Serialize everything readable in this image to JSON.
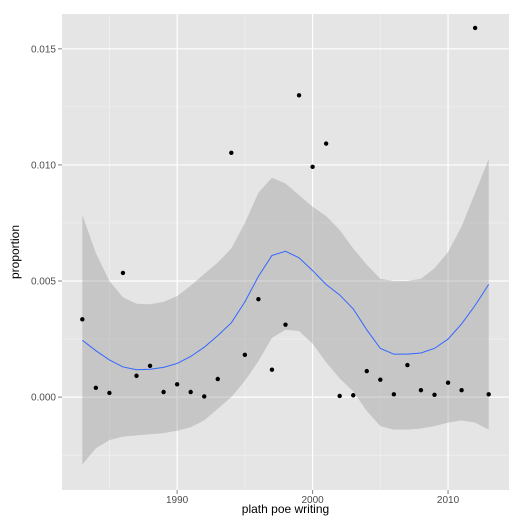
{
  "chart_data": {
    "type": "scatter",
    "title": "",
    "xlabel": "plath poe writing",
    "ylabel": "proportion",
    "xlim": [
      1981.5,
      2014.5
    ],
    "ylim": [
      -0.004,
      0.0165
    ],
    "xticks": [
      1990,
      2000,
      2010
    ],
    "xtick_labels": [
      "1990",
      "2000",
      "2010"
    ],
    "yticks": [
      0.0,
      0.005,
      0.01,
      0.015
    ],
    "ytick_labels": [
      "0.000",
      "0.005",
      "0.010",
      "0.015"
    ],
    "grid": true,
    "legend": "none",
    "colors": {
      "panel": "#e5e5e5",
      "grid_major": "#ffffff",
      "grid_minor": "#f2f2f2",
      "points": "#000000",
      "smooth_line": "#3366ff",
      "ribbon": "#999999"
    },
    "points": [
      {
        "x": 1983,
        "y": 0.00335
      },
      {
        "x": 1984,
        "y": 0.0004
      },
      {
        "x": 1985,
        "y": 0.00018
      },
      {
        "x": 1986,
        "y": 0.00535
      },
      {
        "x": 1987,
        "y": 0.00092
      },
      {
        "x": 1988,
        "y": 0.00135
      },
      {
        "x": 1989,
        "y": 0.00022
      },
      {
        "x": 1990,
        "y": 0.00055
      },
      {
        "x": 1991,
        "y": 0.00022
      },
      {
        "x": 1992,
        "y": 3e-05
      },
      {
        "x": 1993,
        "y": 0.00078
      },
      {
        "x": 1994,
        "y": 0.01052
      },
      {
        "x": 1995,
        "y": 0.00182
      },
      {
        "x": 1996,
        "y": 0.00422
      },
      {
        "x": 1997,
        "y": 0.00118
      },
      {
        "x": 1998,
        "y": 0.00312
      },
      {
        "x": 1999,
        "y": 0.013
      },
      {
        "x": 2000,
        "y": 0.00992
      },
      {
        "x": 2001,
        "y": 0.01092
      },
      {
        "x": 2002,
        "y": 5e-05
      },
      {
        "x": 2003,
        "y": 8e-05
      },
      {
        "x": 2004,
        "y": 0.00112
      },
      {
        "x": 2005,
        "y": 0.00075
      },
      {
        "x": 2006,
        "y": 0.00012
      },
      {
        "x": 2007,
        "y": 0.00138
      },
      {
        "x": 2008,
        "y": 0.0003
      },
      {
        "x": 2009,
        "y": 0.0001
      },
      {
        "x": 2010,
        "y": 0.00062
      },
      {
        "x": 2011,
        "y": 0.0003
      },
      {
        "x": 2012,
        "y": 0.0159
      },
      {
        "x": 2013,
        "y": 0.00012
      }
    ],
    "smooth": {
      "x": [
        1983,
        1984,
        1985,
        1986,
        1987,
        1988,
        1989,
        1990,
        1991,
        1992,
        1993,
        1994,
        1995,
        1996,
        1997,
        1998,
        1999,
        2000,
        2001,
        2002,
        2003,
        2004,
        2005,
        2006,
        2007,
        2008,
        2009,
        2010,
        2011,
        2012,
        2013
      ],
      "y": [
        0.00245,
        0.002,
        0.0016,
        0.0013,
        0.00118,
        0.0012,
        0.00128,
        0.00145,
        0.00175,
        0.00215,
        0.00265,
        0.0032,
        0.0041,
        0.0052,
        0.0061,
        0.00628,
        0.006,
        0.00545,
        0.00485,
        0.0044,
        0.0038,
        0.0029,
        0.0021,
        0.00185,
        0.00185,
        0.0019,
        0.0021,
        0.0025,
        0.00315,
        0.00395,
        0.00485
      ],
      "lower": [
        -0.0029,
        -0.0022,
        -0.00185,
        -0.0017,
        -0.00165,
        -0.0016,
        -0.00155,
        -0.00145,
        -0.0013,
        -0.001,
        -0.0005,
        0.0,
        0.0007,
        0.00155,
        0.00255,
        0.0029,
        0.00285,
        0.0023,
        0.0015,
        0.0008,
        0.00025,
        -0.0006,
        -0.00125,
        -0.0014,
        -0.0014,
        -0.00135,
        -0.00125,
        -0.0011,
        -0.001,
        -0.0011,
        -0.0014
      ],
      "upper": [
        0.00785,
        0.0062,
        0.005,
        0.0043,
        0.00402,
        0.004,
        0.0041,
        0.00435,
        0.0048,
        0.0053,
        0.0058,
        0.0064,
        0.0075,
        0.0088,
        0.00945,
        0.0092,
        0.0087,
        0.0082,
        0.0078,
        0.0072,
        0.0064,
        0.0057,
        0.0051,
        0.005,
        0.005,
        0.0051,
        0.00555,
        0.00625,
        0.00735,
        0.0088,
        0.01025
      ]
    }
  }
}
